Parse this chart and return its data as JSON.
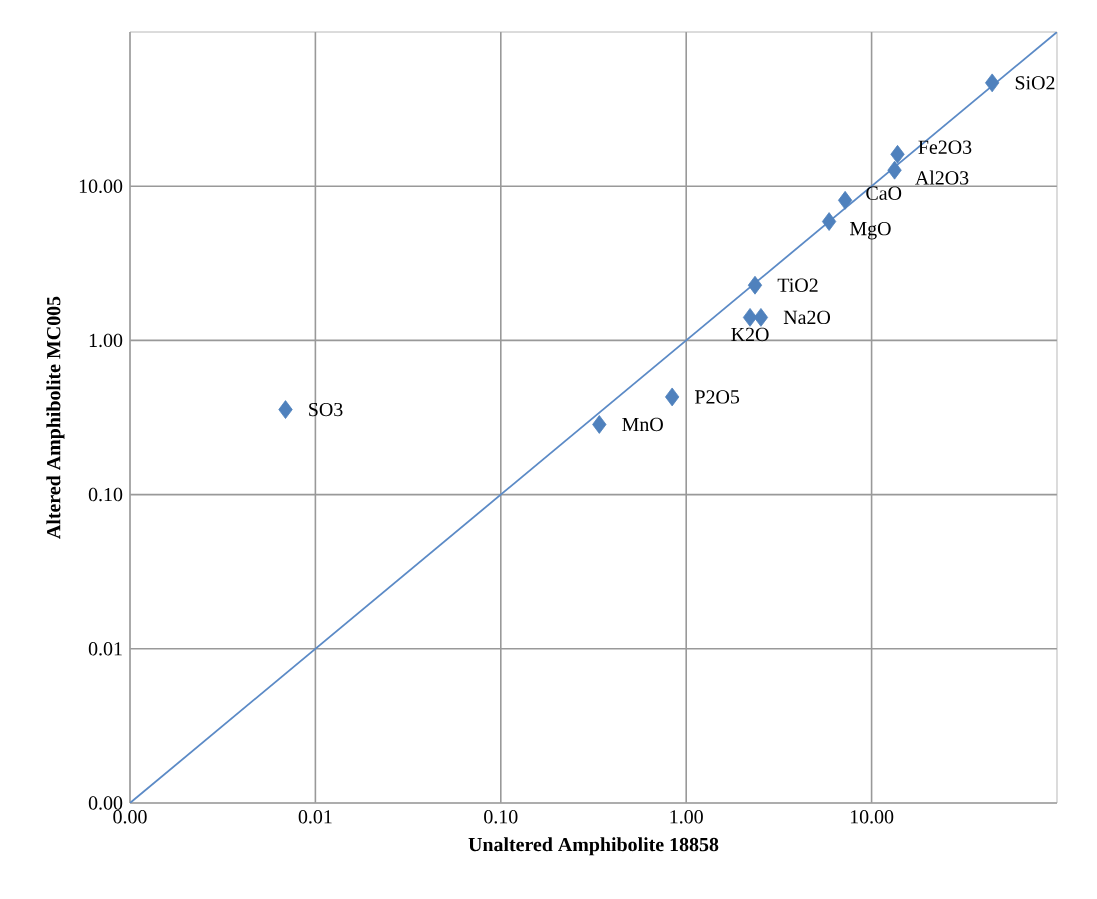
{
  "chart_data": {
    "type": "scatter",
    "xlabel": "Unaltered Amphibolite 18858",
    "ylabel": "Altered Amphibolite MC005",
    "log": "xy",
    "grid": true,
    "xlim": [
      0.001,
      100
    ],
    "ylim": [
      0.001,
      100
    ],
    "xticks": [
      {
        "value": 0.001,
        "label": "0.00"
      },
      {
        "value": 0.01,
        "label": "0.01"
      },
      {
        "value": 0.1,
        "label": "0.10"
      },
      {
        "value": 1,
        "label": "1.00"
      },
      {
        "value": 10,
        "label": "10.00"
      }
    ],
    "yticks": [
      {
        "value": 0.001,
        "label": "0.00"
      },
      {
        "value": 0.01,
        "label": "0.01"
      },
      {
        "value": 0.1,
        "label": "0.10"
      },
      {
        "value": 1,
        "label": "1.00"
      },
      {
        "value": 10,
        "label": "10.00"
      }
    ],
    "series": [
      {
        "color": "#4f81bd",
        "marker": "diamond",
        "x": [
          44.7,
          13.8,
          13.3,
          7.2,
          5.9,
          2.35,
          2.53,
          2.21,
          0.84,
          0.34,
          0.0069
        ],
        "values": [
          46.8,
          16.1,
          12.7,
          8.1,
          5.9,
          2.28,
          1.41,
          1.41,
          0.43,
          0.285,
          0.356
        ]
      },
      {
        "type": "line",
        "color": "#5b8ac6",
        "marker": "none",
        "line_style": "solid",
        "x": [
          0.001,
          100
        ],
        "values": [
          0.001,
          100
        ]
      }
    ],
    "annotations": [
      {
        "text": "SiO2",
        "x": 44.7,
        "y": 46.8
      },
      {
        "text": "Fe2O3",
        "x": 13.8,
        "y": 16.1
      },
      {
        "text": "Al2O3",
        "x": 13.3,
        "y": 12.7
      },
      {
        "text": "CaO",
        "x": 7.2,
        "y": 8.1
      },
      {
        "text": "MgO",
        "x": 5.9,
        "y": 5.9
      },
      {
        "text": "TiO2",
        "x": 2.35,
        "y": 2.28
      },
      {
        "text": "Na2O",
        "x": 2.53,
        "y": 1.41
      },
      {
        "text": "K2O",
        "x": 2.21,
        "y": 1.41
      },
      {
        "text": "P2O5",
        "x": 0.84,
        "y": 0.43
      },
      {
        "text": "MnO",
        "x": 0.34,
        "y": 0.285
      },
      {
        "text": "SO3",
        "x": 0.0069,
        "y": 0.356
      }
    ]
  }
}
